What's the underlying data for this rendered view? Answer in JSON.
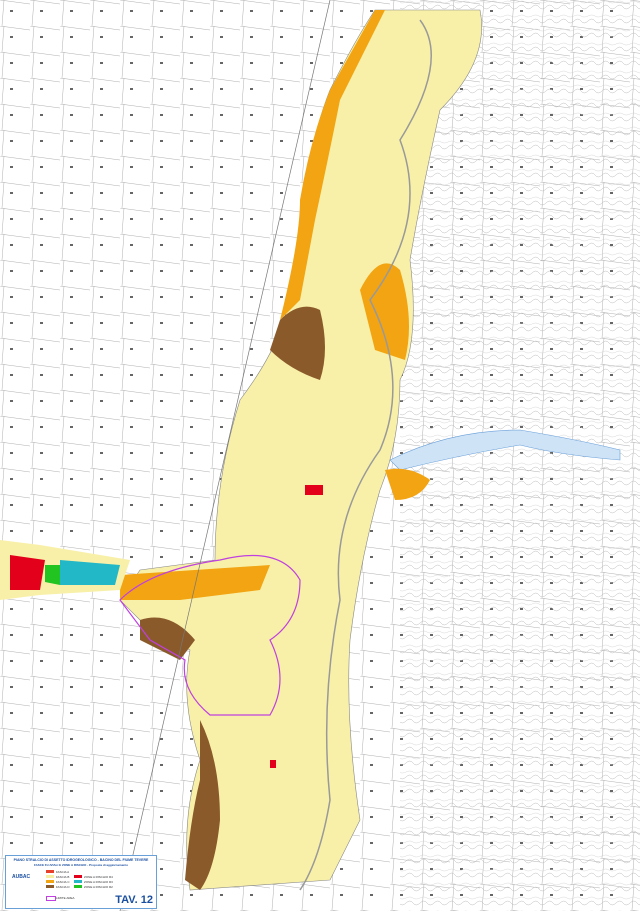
{
  "legend": {
    "title": "PIANO STRALCIO DI ASSETTO IDROGEOLOGICO - BACINO DEL FIUME TEVERE",
    "subtitle": "FASCE FLUVIALI E ZONE A RISCHIO - Proposta di aggiornamento",
    "logo": "AUBAC",
    "items": [
      {
        "label": "FASCIA A",
        "color": "#e8402a"
      },
      {
        "label": "FASCIA B",
        "color": "#f6eea0"
      },
      {
        "label": "FASCIA C",
        "color": "#f2a412"
      },
      {
        "label": "FASCIA D",
        "color": "#8b5a2b"
      },
      {
        "label": "ZONE A RISCHIO R4",
        "color": "#e3001b"
      },
      {
        "label": "ZONE A RISCHIO R3",
        "color": "#22b8c8"
      },
      {
        "label": "ZONE A RISCHIO R2",
        "color": "#22c422"
      },
      {
        "label": "LIMITE AREA",
        "color": "#c040e0"
      }
    ],
    "sheet": "TAV. 12"
  },
  "colors": {
    "fascia_b": "#f8f0a8",
    "fascia_c": "#f2a412",
    "brown": "#8b5a2b",
    "water": "#cfe3f7",
    "boundary": "#c040e0"
  }
}
